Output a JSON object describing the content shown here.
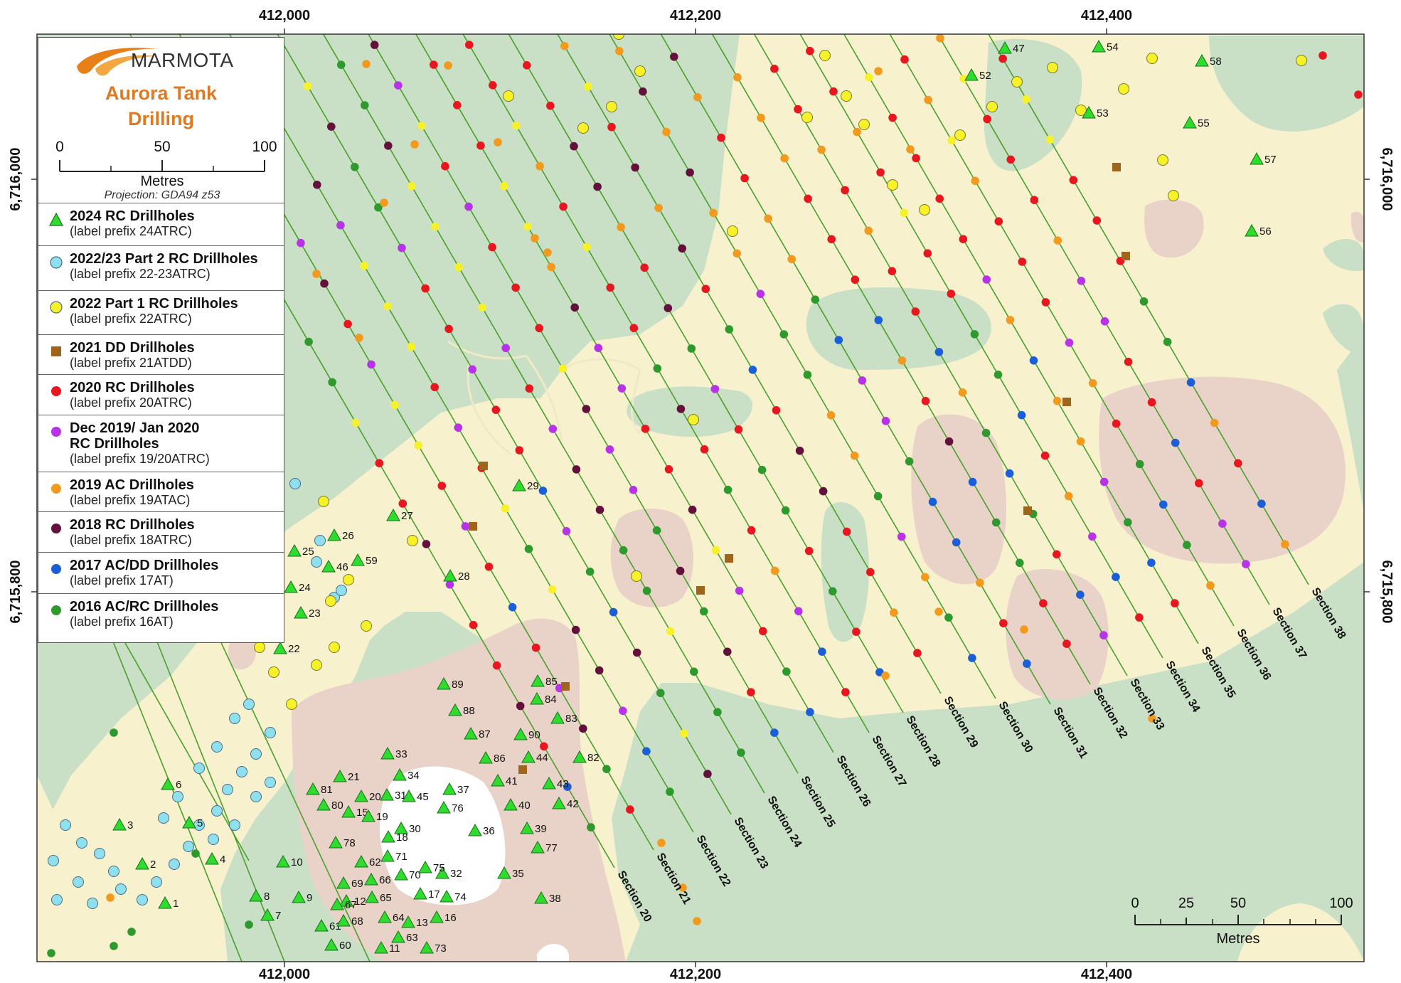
{
  "map": {
    "easting_labels": [
      "412,000",
      "412,200",
      "412,400"
    ],
    "northing_labels": [
      "6,716,000",
      "6,715,800"
    ]
  },
  "legend": {
    "logo_text": "MARMOTA",
    "title_line1": "Aurora Tank",
    "title_line2": "Drilling",
    "scale_ticks": [
      "0",
      "50",
      "100"
    ],
    "scale_unit": "Metres",
    "projection": "Projection: GDA94 z53",
    "items": [
      {
        "title": "2024 RC Drillholes",
        "sub": "(label prefix 24ATRC)",
        "symbol": "triangle",
        "color": "#2edc2e"
      },
      {
        "title": "2022/23 Part 2 RC Drillholes",
        "sub": "(label prefix 22-23ATRC)",
        "symbol": "circle",
        "color": "#8ee0ee"
      },
      {
        "title": "2022 Part 1 RC Drillholes",
        "sub": "(label prefix 22ATRC)",
        "symbol": "circle",
        "color": "#f7f12a"
      },
      {
        "title": "2021 DD Drillholes",
        "sub": "(label prefix 21ATDD)",
        "symbol": "square",
        "color": "#a0651c"
      },
      {
        "title": "2020 RC Drillholes",
        "sub": "(label prefix 20ATRC)",
        "symbol": "dot",
        "color": "#e8161e"
      },
      {
        "title": "Dec 2019/ Jan 2020",
        "title2": "RC Drillholes",
        "sub": "(label prefix 19/20ATRC)",
        "symbol": "dot",
        "color": "#b833e8"
      },
      {
        "title": "2019 AC Drillholes",
        "sub": "(label prefix 19ATAC)",
        "symbol": "dot",
        "color": "#f19a1e"
      },
      {
        "title": "2018 RC Drillholes",
        "sub": "(label prefix 18ATRC)",
        "symbol": "dot",
        "color": "#64103c"
      },
      {
        "title": "2017 AC/DD Drillholes",
        "sub": "(label prefix 17AT)",
        "symbol": "dot",
        "color": "#1a5fd8"
      },
      {
        "title": "2016 AC/RC Drillholes",
        "sub": "(label prefix 16AT)",
        "symbol": "dot",
        "color": "#2e9a2e"
      }
    ]
  },
  "sections": [
    "Section 20",
    "Section 21",
    "Section 22",
    "Section 23",
    "Section 24",
    "Section 25",
    "Section 26",
    "Section 27",
    "Section 28",
    "Section 29",
    "Section 30",
    "Section 31",
    "Section 32",
    "Section 33",
    "Section 34",
    "Section 35",
    "Section 36",
    "Section 37",
    "Section 38"
  ],
  "drillhole_labels_2024": [
    "1",
    "2",
    "3",
    "4",
    "5",
    "6",
    "7",
    "8",
    "9",
    "10",
    "11",
    "12",
    "13",
    "15",
    "16",
    "17",
    "18",
    "19",
    "20",
    "21",
    "22",
    "23",
    "24",
    "25",
    "26",
    "27",
    "28",
    "29",
    "30",
    "31",
    "32",
    "33",
    "34",
    "35",
    "36",
    "37",
    "38",
    "39",
    "40",
    "41",
    "42",
    "43",
    "44",
    "45",
    "46",
    "47",
    "52",
    "53",
    "54",
    "55",
    "56",
    "57",
    "58",
    "59",
    "60",
    "61",
    "62",
    "63",
    "64",
    "65",
    "66",
    "67",
    "68",
    "69",
    "70",
    "71",
    "73",
    "74",
    "75",
    "76",
    "77",
    "78",
    "80",
    "81",
    "82",
    "83",
    "84",
    "85",
    "86",
    "87",
    "88",
    "89",
    "90"
  ],
  "scalebar": {
    "ticks": [
      "0",
      "25",
      "50",
      "100"
    ],
    "unit": "Metres"
  }
}
